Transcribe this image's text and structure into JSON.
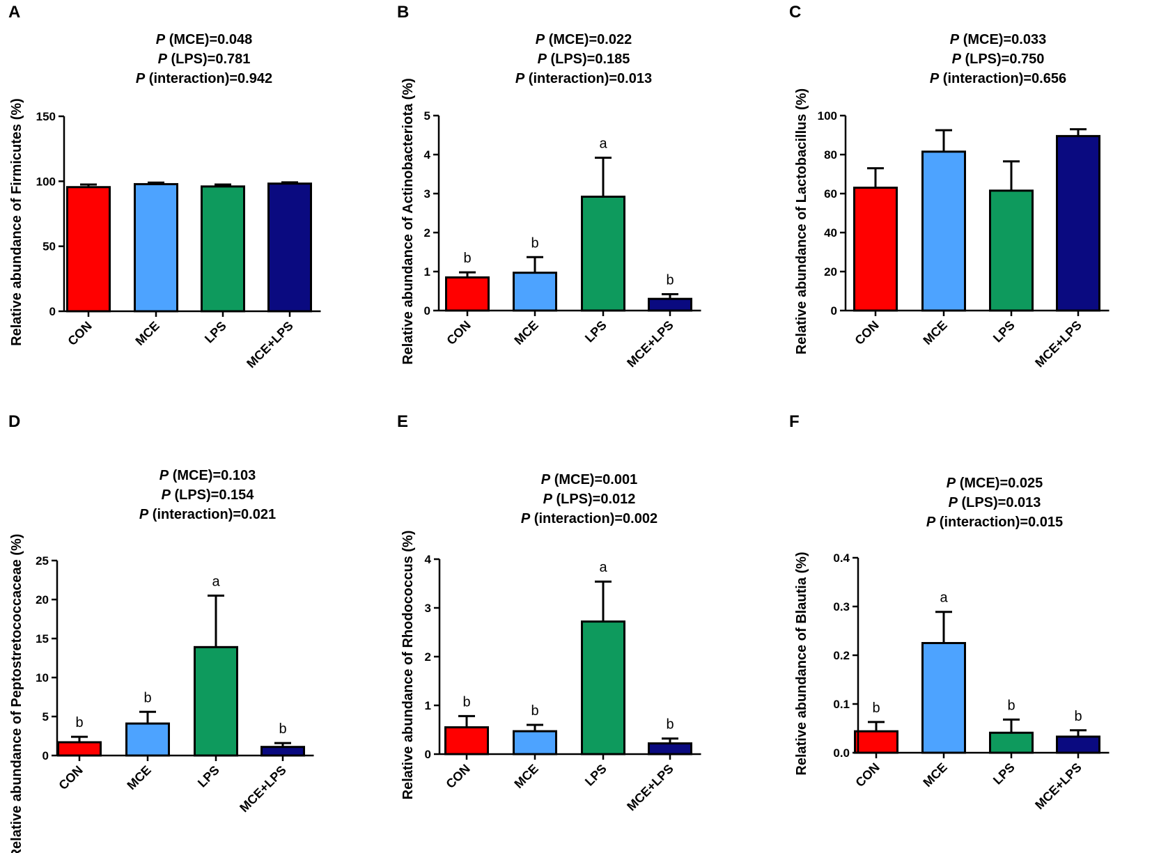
{
  "chart_data": [
    {
      "type": "bar",
      "panel": "A",
      "stats": [
        {
          "prefix": "P",
          "text": " (MCE)=0.048"
        },
        {
          "prefix": "P",
          "text": " (LPS)=0.781"
        },
        {
          "prefix": "P",
          "text": " (interaction)=0.942"
        }
      ],
      "ylabel": "Relative abundance of Firmicutes (%)",
      "categories": [
        "CON",
        "MCE",
        "LPS",
        "MCE+LPS"
      ],
      "values": [
        95.5,
        97.8,
        96.0,
        98.2
      ],
      "errors": [
        2.0,
        1.2,
        1.5,
        1.0
      ],
      "letters": [
        "",
        "",
        "",
        ""
      ],
      "ylim": [
        0,
        150
      ],
      "yticks": [
        0,
        50,
        100,
        150
      ],
      "ytick_labels": [
        "0",
        "50",
        "100",
        "150"
      ]
    },
    {
      "type": "bar",
      "panel": "B",
      "stats": [
        {
          "prefix": "P",
          "text": " (MCE)=0.022"
        },
        {
          "prefix": "P",
          "text": " (LPS)=0.185"
        },
        {
          "prefix": "P",
          "text": " (interaction)=0.013"
        }
      ],
      "ylabel": "Relative abundance of Actinobacteriota (%)",
      "categories": [
        "CON",
        "MCE",
        "LPS",
        "MCE+LPS"
      ],
      "values": [
        0.85,
        0.97,
        2.92,
        0.3
      ],
      "errors": [
        0.13,
        0.4,
        1.0,
        0.12
      ],
      "letters": [
        "b",
        "b",
        "a",
        "b"
      ],
      "ylim": [
        0,
        5
      ],
      "yticks": [
        0,
        1,
        2,
        3,
        4,
        5
      ],
      "ytick_labels": [
        "0",
        "1",
        "2",
        "3",
        "4",
        "5"
      ]
    },
    {
      "type": "bar",
      "panel": "C",
      "stats": [
        {
          "prefix": "P",
          "text": " (MCE)=0.033"
        },
        {
          "prefix": "P",
          "text": " (LPS)=0.750"
        },
        {
          "prefix": "P",
          "text": " (interaction)=0.656"
        }
      ],
      "ylabel": "Relative abundance of Lactobacillus (%)",
      "categories": [
        "CON",
        "MCE",
        "LPS",
        "MCE+LPS"
      ],
      "values": [
        63,
        81.5,
        61.5,
        89.5
      ],
      "errors": [
        10,
        11,
        15,
        3.5
      ],
      "letters": [
        "",
        "",
        "",
        ""
      ],
      "ylim": [
        0,
        100
      ],
      "yticks": [
        0,
        20,
        40,
        60,
        80,
        100
      ],
      "ytick_labels": [
        "0",
        "20",
        "40",
        "60",
        "80",
        "100"
      ]
    },
    {
      "type": "bar",
      "panel": "D",
      "stats": [
        {
          "prefix": "P",
          "text": " (MCE)=0.103"
        },
        {
          "prefix": "P",
          "text": " (LPS)=0.154"
        },
        {
          "prefix": "P",
          "text": " (interaction)=0.021"
        }
      ],
      "ylabel": "Relative abundance of Peptostretococcaceae (%)",
      "categories": [
        "CON",
        "MCE",
        "LPS",
        "MCE+LPS"
      ],
      "values": [
        1.7,
        4.1,
        13.9,
        1.1
      ],
      "errors": [
        0.7,
        1.5,
        6.6,
        0.5
      ],
      "letters": [
        "b",
        "b",
        "a",
        "b"
      ],
      "ylim": [
        0,
        25
      ],
      "yticks": [
        0,
        5,
        10,
        15,
        20,
        25
      ],
      "ytick_labels": [
        "0",
        "5",
        "10",
        "15",
        "20",
        "25"
      ]
    },
    {
      "type": "bar",
      "panel": "E",
      "stats": [
        {
          "prefix": "P",
          "text": " (MCE)=0.001"
        },
        {
          "prefix": "P",
          "text": " (LPS)=0.012"
        },
        {
          "prefix": "P",
          "text": " (interaction)=0.002"
        }
      ],
      "ylabel": "Relative abundance of Rhodococcus (%)",
      "categories": [
        "CON",
        "MCE",
        "LPS",
        "MCE+LPS"
      ],
      "values": [
        0.55,
        0.47,
        2.72,
        0.22
      ],
      "errors": [
        0.23,
        0.13,
        0.82,
        0.1
      ],
      "letters": [
        "b",
        "b",
        "a",
        "b"
      ],
      "ylim": [
        0,
        4
      ],
      "yticks": [
        0,
        1,
        2,
        3,
        4
      ],
      "ytick_labels": [
        "0",
        "1",
        "2",
        "3",
        "4"
      ]
    },
    {
      "type": "bar",
      "panel": "F",
      "stats": [
        {
          "prefix": "P",
          "text": " (MCE)=0.025"
        },
        {
          "prefix": "P",
          "text": " (LPS)=0.013"
        },
        {
          "prefix": "P",
          "text": " (interaction)=0.015"
        }
      ],
      "ylabel": "Relative abundance of Blautia (%)",
      "categories": [
        "CON",
        "MCE",
        "LPS",
        "MCE+LPS"
      ],
      "values": [
        0.044,
        0.225,
        0.041,
        0.033
      ],
      "errors": [
        0.019,
        0.064,
        0.027,
        0.013
      ],
      "letters": [
        "b",
        "a",
        "b",
        "b"
      ],
      "ylim": [
        0,
        0.4
      ],
      "yticks": [
        0,
        0.1,
        0.2,
        0.3,
        0.4
      ],
      "ytick_labels": [
        "0.0",
        "0.1",
        "0.2",
        "0.3",
        "0.4"
      ]
    }
  ],
  "colors": {
    "CON": "#ff0000",
    "MCE": "#4da3ff",
    "LPS": "#0e9a5d",
    "MCE+LPS": "#0a0a80",
    "axis": "#000000"
  }
}
